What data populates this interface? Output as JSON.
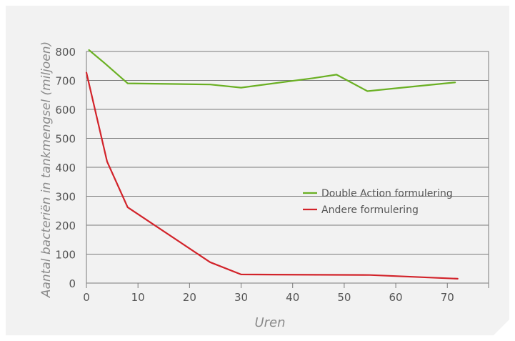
{
  "chart_data": {
    "type": "line",
    "xlabel": "Uren",
    "ylabel": "Aantal bacteriën in tankmengsel (miljoen)",
    "xlim": [
      0,
      78
    ],
    "ylim": [
      0,
      800
    ],
    "xticks": [
      0,
      10,
      20,
      30,
      40,
      50,
      60,
      70
    ],
    "yticks": [
      0,
      100,
      200,
      300,
      400,
      500,
      600,
      700,
      800
    ],
    "grid": "horizontal",
    "legend_position": "right-middle",
    "series": [
      {
        "name": "Double Action formulering",
        "color": "#6ab023",
        "x": [
          0.5,
          3.5,
          8,
          24,
          30,
          44,
          48.5,
          54.5,
          64,
          71.5
        ],
        "y": [
          805,
          760,
          690,
          686,
          675,
          708,
          720,
          663,
          680,
          693
        ]
      },
      {
        "name": "Andere formulering",
        "color": "#d2232a",
        "x": [
          0,
          4,
          8,
          24,
          30,
          55,
          72
        ],
        "y": [
          727,
          420,
          262,
          72,
          30,
          28,
          15
        ]
      }
    ]
  }
}
